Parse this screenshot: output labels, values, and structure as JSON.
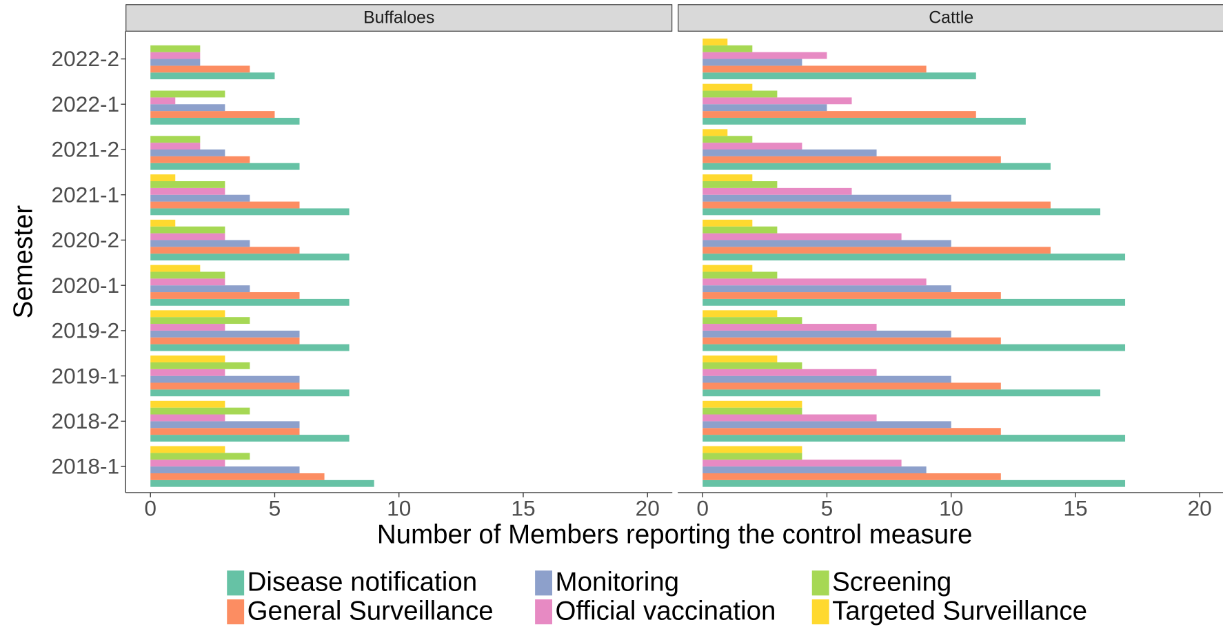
{
  "chart_data": {
    "type": "bar",
    "orientation": "horizontal",
    "x_label": "Number of Members reporting the control measure",
    "y_label": "Semester",
    "categories": [
      "2018-1",
      "2018-2",
      "2019-1",
      "2019-2",
      "2020-1",
      "2020-2",
      "2021-1",
      "2021-2",
      "2022-1",
      "2022-2"
    ],
    "series": [
      {
        "name": "Disease notification",
        "color": "#66c2a5"
      },
      {
        "name": "General Surveillance",
        "color": "#fc8d62"
      },
      {
        "name": "Monitoring",
        "color": "#8da0cb"
      },
      {
        "name": "Official vaccination",
        "color": "#e78ac3"
      },
      {
        "name": "Screening",
        "color": "#a6d854"
      },
      {
        "name": "Targeted Surveillance",
        "color": "#ffd92f"
      }
    ],
    "panels": [
      {
        "title": "Buffaloes",
        "series": [
          {
            "values": [
              9,
              8,
              8,
              8,
              8,
              8,
              8,
              6,
              6,
              5
            ]
          },
          {
            "values": [
              7,
              6,
              6,
              6,
              6,
              6,
              6,
              4,
              5,
              4
            ]
          },
          {
            "values": [
              6,
              6,
              6,
              6,
              4,
              4,
              4,
              3,
              3,
              2
            ]
          },
          {
            "values": [
              3,
              3,
              3,
              3,
              3,
              3,
              3,
              2,
              1,
              2
            ]
          },
          {
            "values": [
              4,
              4,
              4,
              4,
              3,
              3,
              3,
              2,
              3,
              2
            ]
          },
          {
            "values": [
              3,
              3,
              3,
              3,
              2,
              1,
              1,
              0,
              0,
              0
            ]
          }
        ]
      },
      {
        "title": "Cattle",
        "series": [
          {
            "values": [
              17,
              17,
              16,
              17,
              17,
              17,
              16,
              14,
              13,
              11
            ]
          },
          {
            "values": [
              12,
              12,
              12,
              12,
              12,
              14,
              14,
              12,
              11,
              9
            ]
          },
          {
            "values": [
              9,
              10,
              10,
              10,
              10,
              10,
              10,
              7,
              5,
              4
            ]
          },
          {
            "values": [
              8,
              7,
              7,
              7,
              9,
              8,
              6,
              4,
              6,
              5
            ]
          },
          {
            "values": [
              4,
              4,
              4,
              4,
              3,
              3,
              3,
              2,
              3,
              2
            ]
          },
          {
            "values": [
              4,
              4,
              3,
              3,
              2,
              2,
              2,
              1,
              2,
              1
            ]
          }
        ]
      }
    ],
    "xlim": [
      -1,
      21
    ],
    "xticks": [
      0,
      5,
      10,
      15,
      20
    ],
    "grid": false
  }
}
